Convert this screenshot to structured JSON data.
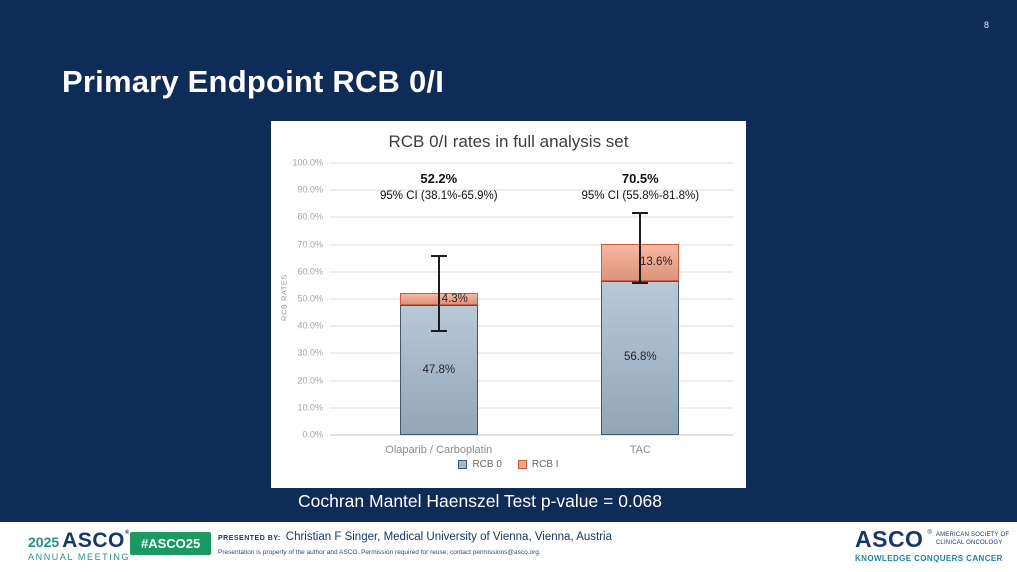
{
  "slide": {
    "page_number": "8",
    "title": "Primary Endpoint RCB 0/I",
    "stat_note": "Cochran Mantel Haenszel Test p-value = 0.068",
    "colors": {
      "background": "#0d2c58",
      "title_text": "#ffffff"
    }
  },
  "chart_data": {
    "type": "bar",
    "stacked": true,
    "title": "RCB 0/I rates in full analysis set",
    "categories": [
      "Olaparib / Carboplatin",
      "TAC"
    ],
    "series": [
      {
        "name": "RCB 0",
        "values": [
          47.8,
          56.8
        ],
        "labels": [
          "47.8%",
          "56.8%"
        ],
        "fill": "#a3b9cb",
        "border": "#42586d"
      },
      {
        "name": "RCB I",
        "values": [
          4.3,
          13.6
        ],
        "labels": [
          "4.3%",
          "13.6%"
        ],
        "fill": "#f5a487",
        "border": "#d05a3a"
      }
    ],
    "totals": [
      {
        "label": "52.2%",
        "ci_label": "95% CI (38.1%-65.9%)",
        "ci_low": 38.1,
        "ci_high": 65.9
      },
      {
        "label": "70.5%",
        "ci_label": "95% CI (55.8%-81.8%)",
        "ci_low": 55.8,
        "ci_high": 81.8
      }
    ],
    "ylabel": "RCB RATES",
    "ylim": [
      0,
      100
    ],
    "yticks": [
      "0.0%",
      "10.0%",
      "20.0%",
      "30.0%",
      "40.0%",
      "50.0%",
      "60.0%",
      "70.0%",
      "80.0%",
      "90.0%",
      "100.0%"
    ],
    "grid": true,
    "legend_position": "bottom"
  },
  "footer": {
    "meeting_logo": {
      "year": "2025",
      "org": "ASCO",
      "line2": "ANNUAL MEETING"
    },
    "hashtag": "#ASCO25",
    "presented_by_label": "PRESENTED BY:",
    "presenter": "Christian F Singer, Medical University of Vienna, Vienna, Austria",
    "disclaimer": "Presentation is property of the author and ASCO. Permission required for reuse; contact permissions@asco.org.",
    "asco_logo": {
      "org": "ASCO",
      "subtitle_line1": "AMERICAN SOCIETY OF",
      "subtitle_line2": "CLINICAL ONCOLOGY",
      "tagline": "KNOWLEDGE CONQUERS CANCER"
    },
    "colors": {
      "badge_green": "#1a9a63",
      "navy_text": "#16386e",
      "teal": "#1f9583",
      "tagline_teal": "#1e85a5"
    }
  }
}
